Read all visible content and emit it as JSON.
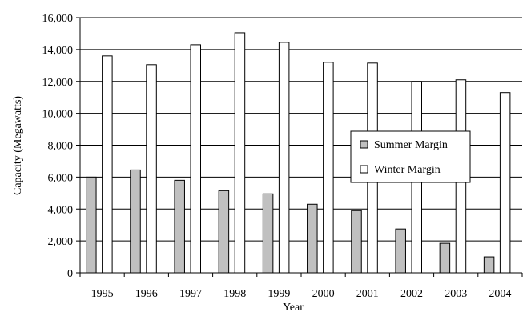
{
  "chart_data": {
    "type": "bar",
    "title": "",
    "xlabel": "Year",
    "ylabel": "Capacity (Megawatts)",
    "ylim": [
      0,
      16000
    ],
    "yticks": [
      0,
      2000,
      4000,
      6000,
      8000,
      10000,
      12000,
      14000,
      16000
    ],
    "ytick_labels": [
      "0",
      "2,000",
      "4,000",
      "6,000",
      "8,000",
      "10,000",
      "12,000",
      "14,000",
      "16,000"
    ],
    "grid": "horizontal",
    "legend_position": "right",
    "categories": [
      "1995",
      "1996",
      "1997",
      "1998",
      "1999",
      "2000",
      "2001",
      "2002",
      "2003",
      "2004"
    ],
    "series": [
      {
        "name": "Summer Margin",
        "color": "#c0c0c0",
        "values": [
          6000,
          6450,
          5800,
          5150,
          4950,
          4300,
          3900,
          2750,
          1850,
          1000
        ]
      },
      {
        "name": "Winter Margin",
        "color": "#ffffff",
        "values": [
          13600,
          13050,
          14300,
          15050,
          14450,
          13200,
          13150,
          12000,
          12100,
          11300
        ]
      }
    ]
  }
}
